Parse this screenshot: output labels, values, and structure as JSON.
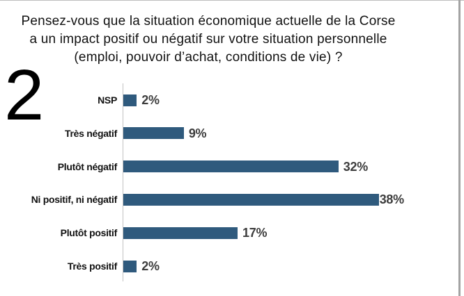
{
  "slide": {
    "number": "2",
    "title_lines": [
      "Pensez-vous que la situation économique actuelle de la Corse",
      "a un impact positif ou négatif sur votre situation personnelle",
      "(emploi, pouvoir d’achat, conditions de vie) ?"
    ]
  },
  "chart_data": {
    "type": "bar",
    "orientation": "horizontal",
    "title": "Pensez-vous que la situation économique actuelle de la Corse a un impact positif ou négatif sur votre situation personnelle (emploi, pouvoir d’achat, conditions de vie) ?",
    "categories": [
      "NSP",
      "Très négatif",
      "Plutôt négatif",
      "Ni positif, ni négatif",
      "Plutôt positif",
      "Très positif"
    ],
    "values": [
      2,
      9,
      32,
      38,
      17,
      2
    ],
    "value_labels": [
      "2%",
      "9%",
      "32%",
      "38%",
      "17%",
      "2%"
    ],
    "xlim": [
      0,
      40
    ],
    "grid": false,
    "legend": false,
    "colors": {
      "bar": "#2f5a7d",
      "axis_line": "#c0c0c0",
      "category_label": "#111111",
      "value_label": "#3d3d3d",
      "title": "#111111"
    }
  }
}
